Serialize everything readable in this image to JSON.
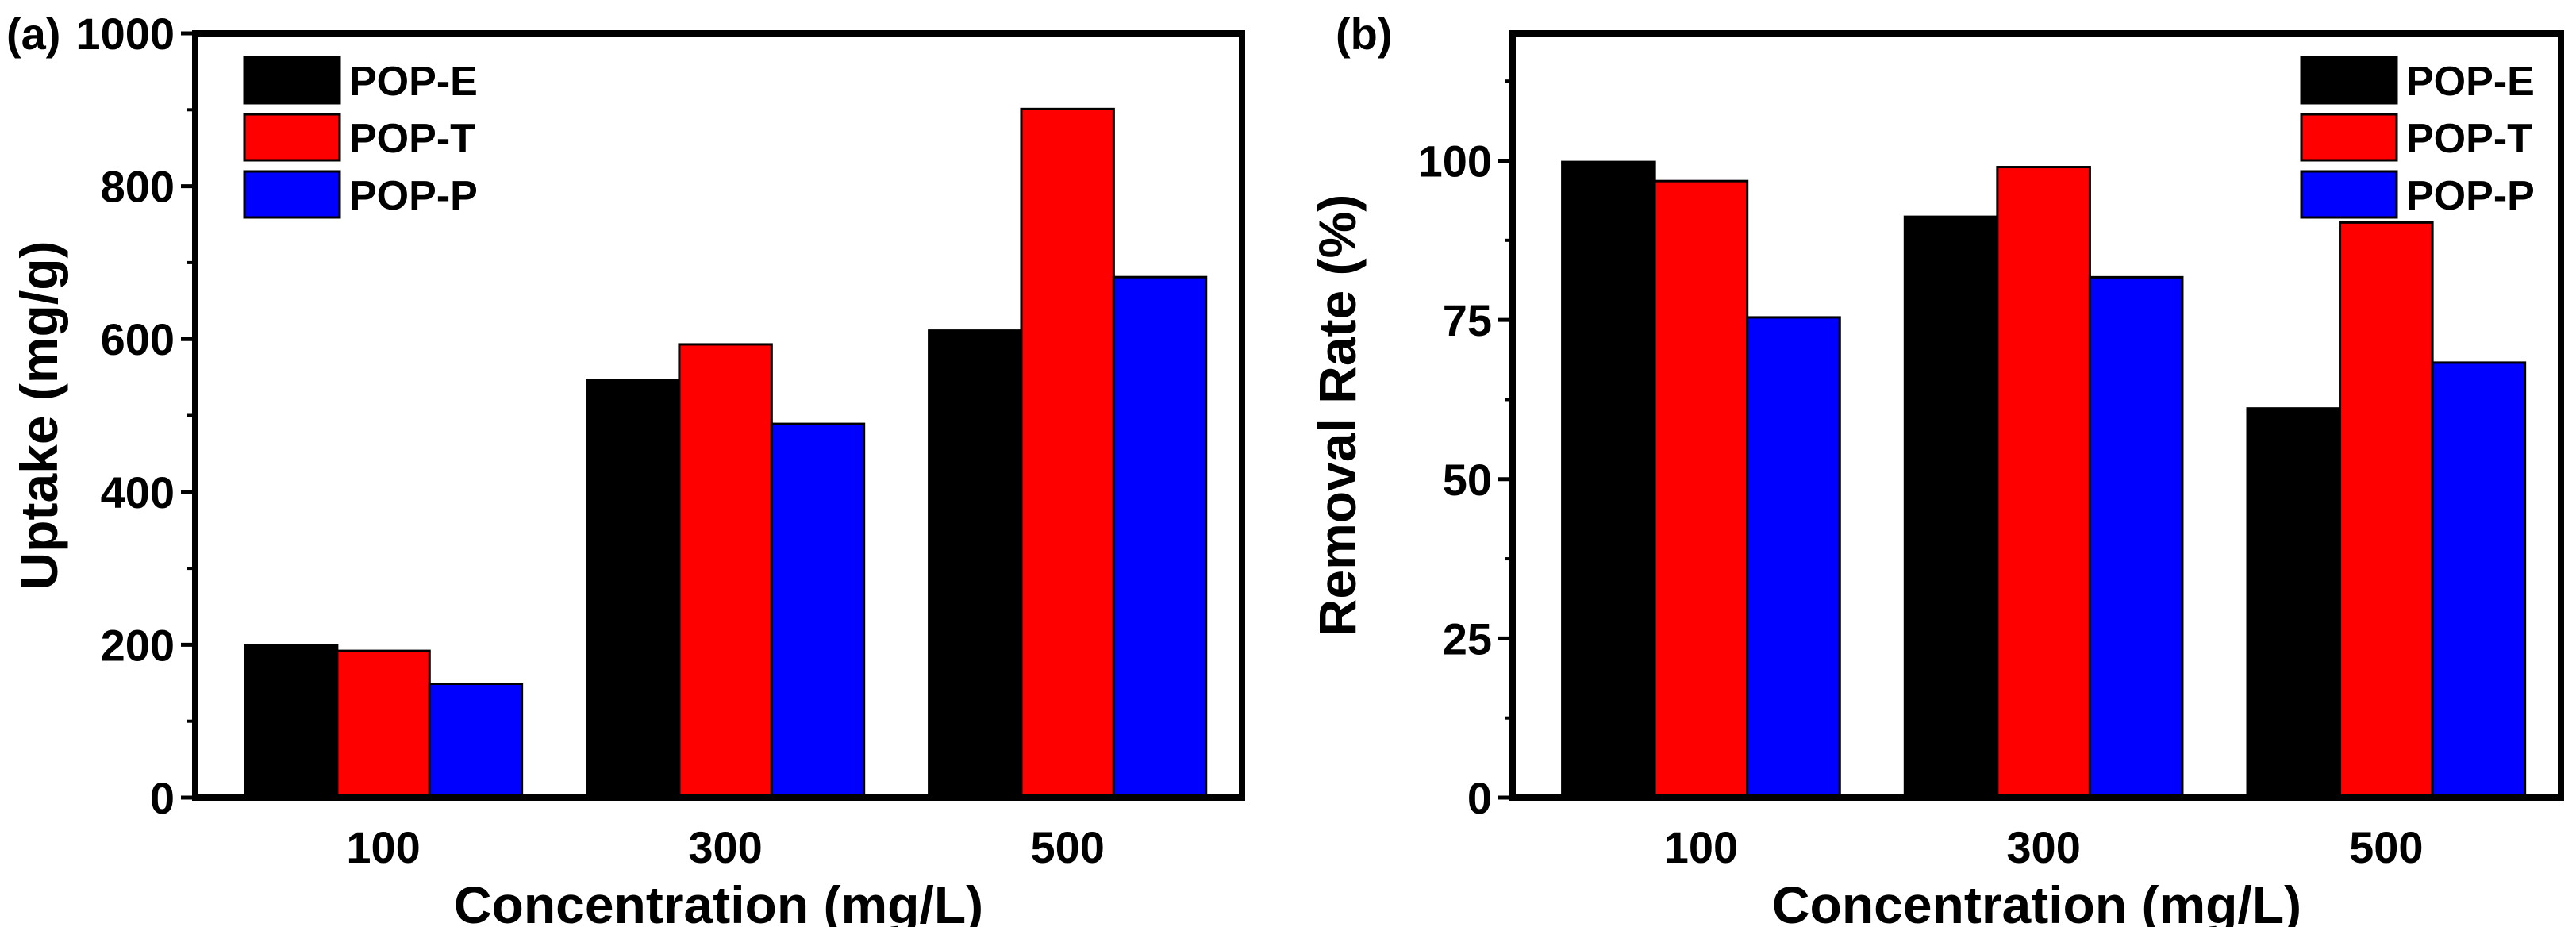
{
  "chart_data": [
    {
      "type": "bar",
      "panel_label": "(a)",
      "categories": [
        "100",
        "300",
        "500"
      ],
      "xlabel": "Concentration (mg/L)",
      "ylabel": "Uptake (mg/g)",
      "ylim": [
        0,
        1000
      ],
      "yticks": [
        "0",
        "200",
        "400",
        "600",
        "800",
        "1000"
      ],
      "ytick_values": [
        0,
        200,
        400,
        600,
        800,
        1000
      ],
      "minor_step": 100,
      "legend_position": "top-left",
      "series": [
        {
          "name": "POP-E",
          "color": "#000000",
          "values": [
            199,
            546,
            611
          ]
        },
        {
          "name": "POP-T",
          "color": "#ff0000",
          "values": [
            192,
            593,
            901
          ]
        },
        {
          "name": "POP-P",
          "color": "#0000ff",
          "values": [
            149,
            489,
            681
          ]
        }
      ]
    },
    {
      "type": "bar",
      "panel_label": "(b)",
      "categories": [
        "100",
        "300",
        "500"
      ],
      "xlabel": "Concentration (mg/L)",
      "ylabel": "Removal Rate (%)",
      "ylim": [
        0,
        120
      ],
      "yticks": [
        "0",
        "25",
        "50",
        "75",
        "100"
      ],
      "ytick_values": [
        0,
        25,
        50,
        75,
        100
      ],
      "minor_step": 12.5,
      "legend_position": "top-right",
      "series": [
        {
          "name": "POP-E",
          "color": "#000000",
          "values": [
            99.8,
            91.2,
            61.1
          ]
        },
        {
          "name": "POP-T",
          "color": "#ff0000",
          "values": [
            96.8,
            99.0,
            90.3
          ]
        },
        {
          "name": "POP-P",
          "color": "#0000ff",
          "values": [
            75.4,
            81.7,
            68.3
          ]
        }
      ]
    }
  ]
}
